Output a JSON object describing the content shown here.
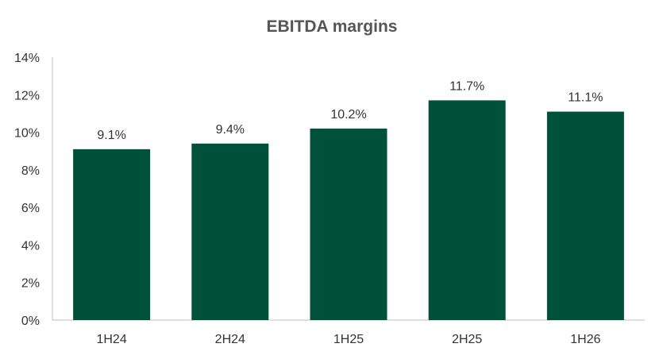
{
  "chart_data": {
    "type": "bar",
    "title": "EBITDA margins",
    "xlabel": "",
    "ylabel": "",
    "categories": [
      "1H24",
      "2H24",
      "1H25",
      "2H25",
      "1H26"
    ],
    "values": [
      9.1,
      9.4,
      10.2,
      11.7,
      11.1
    ],
    "data_labels": [
      "9.1%",
      "9.4%",
      "10.2%",
      "11.7%",
      "11.1%"
    ],
    "ylim": [
      0,
      14
    ],
    "yticks": [
      0,
      2,
      4,
      6,
      8,
      10,
      12,
      14
    ],
    "ytick_labels": [
      "0%",
      "2%",
      "4%",
      "6%",
      "8%",
      "10%",
      "12%",
      "14%"
    ],
    "grid": false,
    "legend": "none",
    "bar_color": "#00513a"
  }
}
